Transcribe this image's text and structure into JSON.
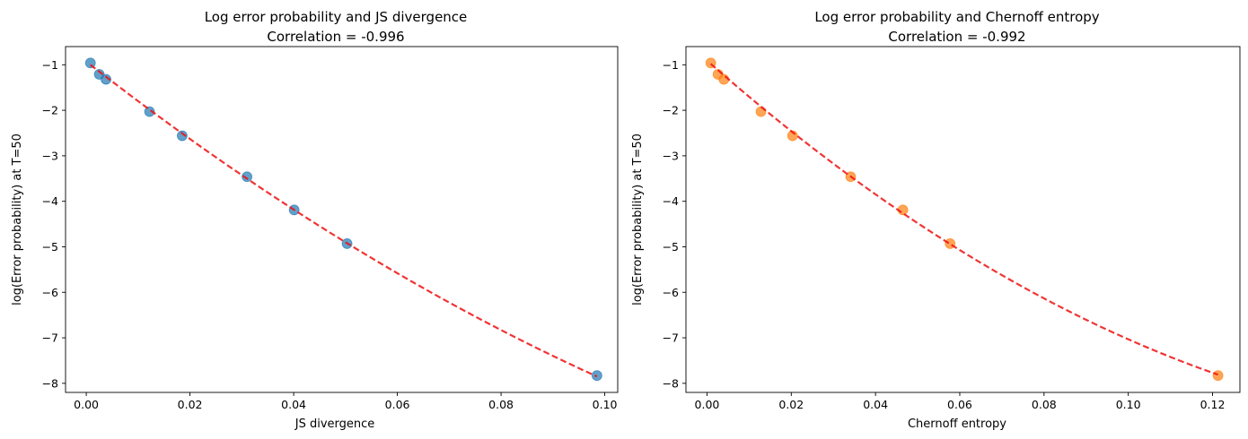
{
  "chart_data": [
    {
      "type": "scatter",
      "title": "Log error probability and JS divergence",
      "subtitle": "Correlation = -0.996",
      "xlabel": "JS divergence",
      "ylabel": "log(Error probability) at T=50",
      "xlim": [
        -0.004,
        0.1025
      ],
      "ylim": [
        -8.2,
        -0.6
      ],
      "xticks": [
        0.0,
        0.02,
        0.04,
        0.06,
        0.08,
        0.1
      ],
      "xtick_labels": [
        "0.00",
        "0.02",
        "0.04",
        "0.06",
        "0.08",
        "0.10"
      ],
      "yticks": [
        -8,
        -7,
        -6,
        -5,
        -4,
        -3,
        -2,
        -1
      ],
      "ytick_labels": [
        "−8",
        "−7",
        "−6",
        "−5",
        "−4",
        "−3",
        "−2",
        "−1"
      ],
      "grid": false,
      "points_color": "#1f77b4",
      "fit_color": "#ee1111",
      "x": [
        0.0008,
        0.0025,
        0.0038,
        0.0122,
        0.0185,
        0.031,
        0.0401,
        0.0503,
        0.0985
      ],
      "y": [
        -0.96,
        -1.21,
        -1.32,
        -2.03,
        -2.56,
        -3.46,
        -4.19,
        -4.93,
        -7.83
      ],
      "fit_curve": {
        "style": "dashed",
        "x": [
          0.0008,
          0.0385,
          0.0985
        ],
        "y": [
          -1.0,
          -4.07,
          -7.85
        ]
      }
    },
    {
      "type": "scatter",
      "title": "Log error probability and Chernoff entropy",
      "subtitle": "Correlation = -0.992",
      "xlabel": "Chernoff entropy",
      "ylabel": "log(Error probability) at T=50",
      "xlim": [
        -0.005,
        0.1265
      ],
      "ylim": [
        -8.2,
        -0.6
      ],
      "xticks": [
        0.0,
        0.02,
        0.04,
        0.06,
        0.08,
        0.1,
        0.12
      ],
      "xtick_labels": [
        "0.00",
        "0.02",
        "0.04",
        "0.06",
        "0.08",
        "0.10",
        "0.12"
      ],
      "yticks": [
        -8,
        -7,
        -6,
        -5,
        -4,
        -3,
        -2,
        -1
      ],
      "ytick_labels": [
        "−8",
        "−7",
        "−6",
        "−5",
        "−4",
        "−3",
        "−2",
        "−1"
      ],
      "grid": false,
      "points_color": "#ff7f0e",
      "fit_color": "#ee1111",
      "x": [
        0.0009,
        0.0026,
        0.004,
        0.0128,
        0.0203,
        0.0341,
        0.0465,
        0.0577,
        0.1213
      ],
      "y": [
        -0.96,
        -1.21,
        -1.32,
        -2.03,
        -2.56,
        -3.46,
        -4.19,
        -4.93,
        -7.83
      ],
      "fit_curve": {
        "style": "dashed",
        "x": [
          0.0009,
          0.056,
          0.1213
        ],
        "y": [
          -0.98,
          -4.84,
          -7.81
        ]
      }
    }
  ]
}
